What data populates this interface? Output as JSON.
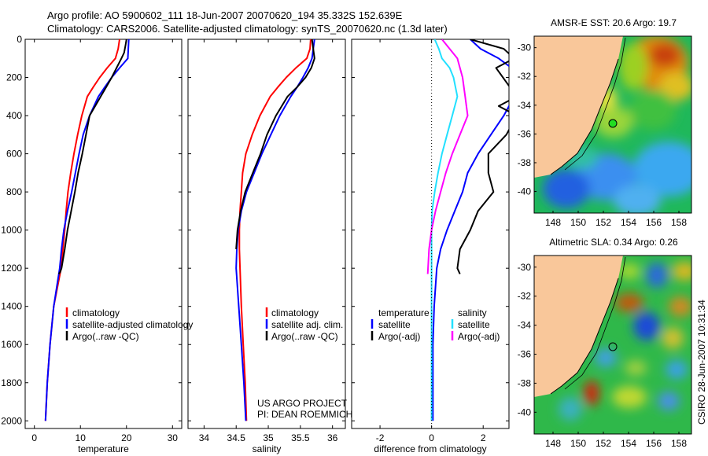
{
  "header": {
    "line1": "Argo profile: AO 5900602_111 18-Jun-2007 20070620_194 35.332S 152.639E",
    "line2": "Climatology: CARS2006. Satellite-adjusted climatology: synTS_20070620.nc (1.3d later)"
  },
  "credit": "CSIRO 28-Jun-2007 10:31:34",
  "project": {
    "line1": "US ARGO PROJECT",
    "line2": "PI: DEAN ROEMMICH"
  },
  "colors": {
    "climatology": "#ff0000",
    "satellite": "#0000ff",
    "argo": "#000000",
    "cyan": "#22e0ff",
    "magenta": "#ff00ff",
    "land": "#f9c79a"
  },
  "chart_data": [
    {
      "type": "line",
      "xlabel": "temperature",
      "ylabel": "",
      "xlim": [
        -2,
        32
      ],
      "ylim": [
        2040,
        0
      ],
      "xticks": [
        0,
        10,
        20,
        30
      ],
      "yticks": [
        0,
        200,
        400,
        600,
        800,
        1000,
        1200,
        1400,
        1600,
        1800,
        2000
      ],
      "legend_position": "lower-middle",
      "series": [
        {
          "name": "climatology",
          "color": "#ff0000",
          "x": [
            18.5,
            18.2,
            17.6,
            15.8,
            14.2,
            12.8,
            11.5,
            10.3,
            9.4,
            8.6,
            7.9,
            7.3,
            6.9,
            6.6,
            6.2,
            5.8,
            4.2,
            3.4,
            2.8,
            2.4
          ],
          "y": [
            0,
            50,
            100,
            150,
            200,
            250,
            300,
            400,
            500,
            600,
            700,
            800,
            900,
            1000,
            1100,
            1200,
            1400,
            1600,
            1800,
            2000
          ]
        },
        {
          "name": "satellite-adjusted climatology",
          "color": "#0000ff",
          "x": [
            20.5,
            20.4,
            20.3,
            18.5,
            16.8,
            15.3,
            13.9,
            12.0,
            10.6,
            9.7,
            8.9,
            8.1,
            7.2,
            6.4,
            5.9,
            5.5,
            4.2,
            3.4,
            2.8,
            2.4
          ],
          "y": [
            0,
            50,
            100,
            150,
            200,
            250,
            300,
            400,
            500,
            600,
            700,
            800,
            900,
            1000,
            1100,
            1200,
            1400,
            1600,
            1800,
            2000
          ]
        },
        {
          "name": "Argo(..raw -QC)",
          "color": "#000000",
          "x": [
            20.0,
            19.8,
            19.5,
            18.9,
            16.8,
            15.6,
            14.4,
            13.2,
            12.0,
            11.2,
            10.4,
            9.5,
            8.8,
            8.0,
            7.2,
            6.6,
            5.9,
            5.6,
            5.3
          ],
          "y": [
            0,
            30,
            70,
            100,
            200,
            250,
            300,
            350,
            400,
            500,
            600,
            700,
            800,
            900,
            1000,
            1100,
            1200,
            1220,
            1230
          ]
        }
      ]
    },
    {
      "type": "line",
      "xlabel": "salinity",
      "ylabel": "",
      "xlim": [
        33.75,
        36.2
      ],
      "ylim": [
        2040,
        0
      ],
      "xticks": [
        34,
        34.5,
        35,
        35.5,
        36
      ],
      "legend_position": "lower-middle",
      "series": [
        {
          "name": "climatology",
          "color": "#ff0000",
          "x": [
            35.66,
            35.65,
            35.6,
            35.43,
            35.28,
            35.15,
            35.03,
            34.87,
            34.75,
            34.65,
            34.6,
            34.58,
            34.56,
            34.55,
            34.55,
            34.56,
            34.58,
            34.61,
            34.64,
            34.66
          ],
          "y": [
            0,
            50,
            100,
            150,
            200,
            250,
            300,
            400,
            500,
            600,
            700,
            800,
            900,
            1000,
            1100,
            1200,
            1400,
            1600,
            1800,
            2000
          ]
        },
        {
          "name": "satellite adj. clim.",
          "color": "#0000ff",
          "x": [
            35.72,
            35.7,
            35.68,
            35.62,
            35.54,
            35.45,
            35.35,
            35.18,
            35.04,
            34.9,
            34.78,
            34.66,
            34.58,
            34.53,
            34.51,
            34.5,
            34.54,
            34.58,
            34.62,
            34.65
          ],
          "y": [
            0,
            50,
            100,
            150,
            200,
            250,
            300,
            400,
            500,
            600,
            700,
            800,
            900,
            1000,
            1100,
            1200,
            1400,
            1600,
            1800,
            2000
          ]
        },
        {
          "name": "Argo(..raw -QC)",
          "color": "#000000",
          "x": [
            35.68,
            35.7,
            35.72,
            35.67,
            35.58,
            35.45,
            35.3,
            35.12,
            34.98,
            34.88,
            34.76,
            34.64,
            34.57,
            34.52,
            34.5
          ],
          "y": [
            0,
            50,
            100,
            150,
            200,
            250,
            300,
            400,
            500,
            600,
            700,
            800,
            900,
            1000,
            1100
          ]
        }
      ]
    },
    {
      "type": "line",
      "xlabel": "difference from climatology",
      "ylabel": "",
      "xlim": [
        -3.1,
        3.0
      ],
      "ylim": [
        2040,
        0
      ],
      "xticks": [
        -2,
        0,
        2
      ],
      "legend_position": "lower-middle",
      "legend_groups": [
        {
          "title": "temperature",
          "entries": [
            "satellite",
            "Argo(-adj)"
          ]
        },
        {
          "title": "salinity",
          "entries": [
            "satellite",
            "Argo(-adj)"
          ]
        }
      ],
      "series": [
        {
          "name": "temperature satellite",
          "color": "#0000ff",
          "x": [
            1.5,
            1.9,
            2.6,
            3.1,
            3.3,
            3.2,
            2.8,
            2.3,
            1.8,
            1.4,
            1.2,
            0.9,
            0.6,
            0.35,
            0.2,
            0.1,
            0.05,
            0.05
          ],
          "y": [
            0,
            50,
            100,
            150,
            200,
            300,
            400,
            500,
            600,
            700,
            800,
            900,
            1000,
            1100,
            1200,
            1400,
            1600,
            2000
          ]
        },
        {
          "name": "temperature Argo(-adj)",
          "color": "#000000",
          "x": [
            1.5,
            2.8,
            3.2,
            2.5,
            3.3,
            2.6,
            3.3,
            2.9,
            2.2,
            2.2,
            2.4,
            1.8,
            1.5,
            1.1,
            1.0,
            1.1
          ],
          "y": [
            0,
            50,
            100,
            150,
            300,
            350,
            400,
            500,
            600,
            700,
            800,
            900,
            1000,
            1100,
            1200,
            1230
          ]
        },
        {
          "name": "salinity satellite",
          "color": "#22e0ff",
          "x": [
            0.12,
            0.28,
            0.4,
            0.7,
            0.85,
            1.0,
            0.8,
            0.6,
            0.4,
            0.25,
            0.12,
            0.02,
            0.0,
            0.0,
            0.0
          ],
          "y": [
            0,
            50,
            100,
            150,
            200,
            300,
            400,
            500,
            600,
            700,
            800,
            900,
            1000,
            1200,
            2000
          ]
        },
        {
          "name": "salinity Argo(-adj)",
          "color": "#ff00ff",
          "x": [
            0.4,
            0.7,
            1.0,
            1.2,
            1.3,
            1.4,
            1.1,
            0.8,
            0.55,
            0.35,
            0.15,
            0.0,
            -0.1,
            -0.15
          ],
          "y": [
            0,
            50,
            100,
            200,
            300,
            400,
            500,
            600,
            700,
            800,
            900,
            1000,
            1100,
            1230
          ]
        }
      ]
    }
  ],
  "maps": [
    {
      "title": "AMSR-E SST: 20.6 Argo: 19.7",
      "xticks": [
        148,
        150,
        152,
        154,
        156,
        158
      ],
      "yticks": [
        -30,
        -32,
        -34,
        -36,
        -38,
        -40
      ],
      "xlim": [
        146.5,
        159
      ],
      "ylim": [
        -41.5,
        -29.2
      ],
      "float_position": {
        "lon": 152.6,
        "lat": -35.3
      },
      "marker_color": "#22dd22"
    },
    {
      "title": "Altimetric SLA: 0.34 Argo: 0.26",
      "xticks": [
        148,
        150,
        152,
        154,
        156,
        158
      ],
      "yticks": [
        -30,
        -32,
        -34,
        -36,
        -38,
        -40
      ],
      "xlim": [
        146.5,
        159
      ],
      "ylim": [
        -41.5,
        -29.2
      ],
      "float_position": {
        "lon": 152.6,
        "lat": -35.3
      },
      "marker_color": "none"
    }
  ]
}
